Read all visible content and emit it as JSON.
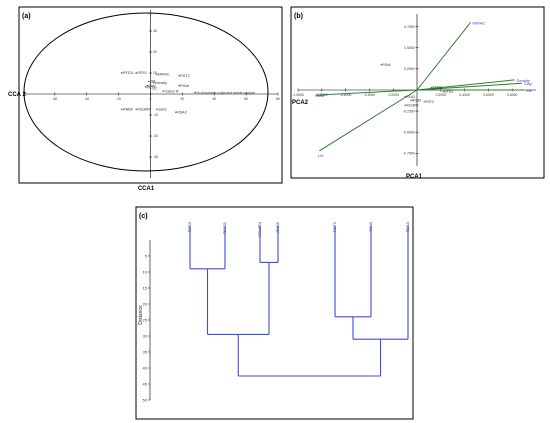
{
  "chart_data": [
    {
      "panel": "(a)",
      "type": "scatter",
      "xlabel": "CCA1",
      "ylabel": "CCA 2",
      "xlim": [
        -80,
        80
      ],
      "ylim": [
        -60,
        60
      ],
      "xticks": [
        -60,
        -40,
        -20,
        0,
        20,
        40,
        60,
        80
      ],
      "yticks": [
        -45,
        -30,
        -15,
        15,
        30,
        45
      ],
      "points": [
        {
          "label": "RFS11",
          "x": -18,
          "y": 15
        },
        {
          "label": "RFS3",
          "x": -9,
          "y": 15
        },
        {
          "label": "MWHC",
          "x": 4,
          "y": 14
        },
        {
          "label": "RST2",
          "x": 18,
          "y": 13
        },
        {
          "label": "Silt",
          "x": -1,
          "y": 9
        },
        {
          "label": "Density",
          "x": 2,
          "y": 8
        },
        {
          "label": "Clay",
          "x": -2,
          "y": 6
        },
        {
          "label": "pH",
          "x": -3,
          "y": 5
        },
        {
          "label": "OC",
          "x": 0,
          "y": 4
        },
        {
          "label": "RSoil",
          "x": 18,
          "y": 6
        },
        {
          "label": "Cation R",
          "x": 8,
          "y": 2
        },
        {
          "label": "% of isolates collected seeds sample",
          "x": 28,
          "y": 1
        },
        {
          "label": "RNB5",
          "x": -18,
          "y": -11
        },
        {
          "label": "RSoilR4",
          "x": -9,
          "y": -11
        },
        {
          "label": "Sand",
          "x": 4,
          "y": -11
        },
        {
          "label": "RSA3",
          "x": 16,
          "y": -13
        }
      ]
    },
    {
      "panel": "(b)",
      "type": "biplot",
      "xlabel": "PCA1",
      "ylabel": "PCA2",
      "xlim": [
        -1.0,
        1.0
      ],
      "ylim": [
        -0.9,
        0.9
      ],
      "xticks": [
        "-1.0000",
        "-0.8000",
        "-0.6000",
        "-0.4000",
        "-0.2000",
        "0.2000",
        "0.4000",
        "0.6000",
        "0.8000"
      ],
      "xtick_values": [
        -1.0,
        -0.8,
        -0.6,
        -0.4,
        -0.2,
        0.2,
        0.4,
        0.6,
        0.8
      ],
      "yticks": [
        "0.7500",
        "0.5000",
        "0.2500",
        "-0.2500",
        "-0.5000",
        "-0.7500"
      ],
      "ytick_values": [
        0.75,
        0.5,
        0.25,
        -0.25,
        -0.5,
        -0.75
      ],
      "vectors": [
        {
          "label": "MWHC",
          "x": 0.45,
          "y": 0.8
        },
        {
          "label": "Density",
          "x": 0.82,
          "y": 0.12
        },
        {
          "label": "Clay",
          "x": 0.88,
          "y": 0.08
        },
        {
          "label": "Silt",
          "x": 0.9,
          "y": 0.0
        },
        {
          "label": "Sand",
          "x": -0.85,
          "y": -0.06
        },
        {
          "label": "pH",
          "x": -0.82,
          "y": -0.72
        }
      ],
      "points": [
        {
          "label": "RSoil",
          "x": -0.3,
          "y": 0.3
        },
        {
          "label": "RFS11",
          "x": 0.12,
          "y": 0.03
        },
        {
          "label": "RFS3",
          "x": 0.22,
          "y": -0.02
        },
        {
          "label": "RSA3",
          "x": -0.1,
          "y": -0.08
        },
        {
          "label": "RNB5",
          "x": -0.05,
          "y": -0.12
        },
        {
          "label": "RST2",
          "x": 0.06,
          "y": -0.14
        },
        {
          "label": "RSoilR4",
          "x": -0.1,
          "y": -0.18
        }
      ]
    },
    {
      "panel": "(c)",
      "type": "dendrogram",
      "ylabel": "Distance",
      "ylim": [
        0,
        50
      ],
      "yticks": [
        5,
        10,
        15,
        20,
        25,
        30,
        35,
        40,
        45,
        50
      ],
      "leaves": [
        "RFS3",
        "RFS11",
        "RSoilR4",
        "RNB5",
        "RST2",
        "RSoil",
        "RSA3"
      ],
      "merges": [
        {
          "left": [
            0
          ],
          "right": [
            1
          ],
          "height": 9
        },
        {
          "left": [
            2
          ],
          "right": [
            3
          ],
          "height": 7
        },
        {
          "left": [
            4
          ],
          "right": [
            5
          ],
          "height": 24
        },
        {
          "left": [
            4,
            5
          ],
          "right": [
            6
          ],
          "height": 31
        },
        {
          "left": [
            0,
            1
          ],
          "right": [
            2,
            3
          ],
          "height": 29.5
        },
        {
          "left": [
            0,
            1,
            2,
            3
          ],
          "right": [
            4,
            5,
            6
          ],
          "height": 42.5
        }
      ]
    }
  ],
  "colors": {
    "vector": "#2e7d32",
    "dendrogram": "#3d4fd6",
    "label_blue": "#3446c8",
    "text": "#222222"
  }
}
